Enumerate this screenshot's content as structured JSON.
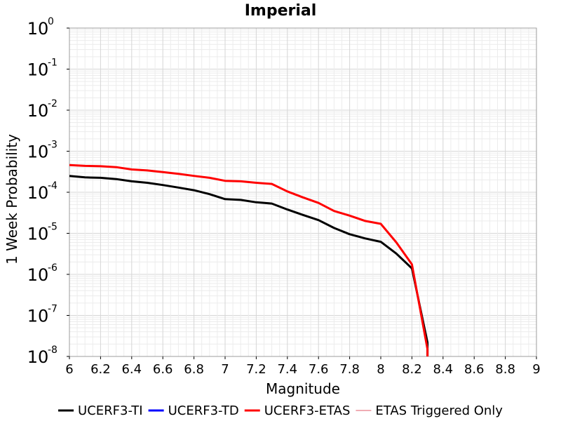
{
  "chart_data": {
    "type": "line",
    "title": "Imperial",
    "xlabel": "Magnitude",
    "ylabel": "1 Week Probability",
    "xlim": [
      6,
      9
    ],
    "ylim": [
      1e-08,
      1
    ],
    "yscale": "log",
    "grid": true,
    "legend_position": "bottom",
    "x_ticks": [
      "6",
      "6.2",
      "6.4",
      "6.6",
      "6.8",
      "7",
      "7.2",
      "7.4",
      "7.6",
      "7.8",
      "8",
      "8.2",
      "8.4",
      "8.6",
      "8.8",
      "9"
    ],
    "y_ticks": [
      {
        "base": "10",
        "exp": "0"
      },
      {
        "base": "10",
        "exp": "-1"
      },
      {
        "base": "10",
        "exp": "-2"
      },
      {
        "base": "10",
        "exp": "-3"
      },
      {
        "base": "10",
        "exp": "-4"
      },
      {
        "base": "10",
        "exp": "-5"
      },
      {
        "base": "10",
        "exp": "-6"
      },
      {
        "base": "10",
        "exp": "-7"
      },
      {
        "base": "10",
        "exp": "-8"
      }
    ],
    "series": [
      {
        "name": "UCERF3-TI",
        "color": "#000000",
        "width": 3,
        "x": [
          6.0,
          6.1,
          6.2,
          6.3,
          6.4,
          6.5,
          6.6,
          6.7,
          6.8,
          6.9,
          7.0,
          7.1,
          7.2,
          7.3,
          7.4,
          7.5,
          7.6,
          7.7,
          7.8,
          7.9,
          8.0,
          8.1,
          8.2,
          8.3,
          8.3
        ],
        "y": [
          0.00025,
          0.00023,
          0.000225,
          0.00021,
          0.000185,
          0.00017,
          0.00015,
          0.00013,
          0.000112,
          9e-05,
          6.8e-05,
          6.5e-05,
          5.7e-05,
          5.3e-05,
          3.8e-05,
          2.8e-05,
          2.1e-05,
          1.35e-05,
          9.5e-06,
          7.5e-06,
          6.2e-06,
          3.2e-06,
          1.4e-06,
          2.2e-08,
          1e-08
        ]
      },
      {
        "name": "UCERF3-TD",
        "color": "#0000ff",
        "width": 3,
        "x": [],
        "y": []
      },
      {
        "name": "UCERF3-ETAS",
        "color": "#ff0000",
        "width": 3,
        "x": [
          6.0,
          6.1,
          6.2,
          6.3,
          6.4,
          6.5,
          6.6,
          6.7,
          6.8,
          6.9,
          7.0,
          7.1,
          7.2,
          7.3,
          7.4,
          7.5,
          7.6,
          7.7,
          7.8,
          7.9,
          8.0,
          8.1,
          8.2,
          8.3,
          8.3
        ],
        "y": [
          0.00046,
          0.00044,
          0.00043,
          0.00041,
          0.00036,
          0.00034,
          0.00031,
          0.00028,
          0.00025,
          0.000225,
          0.00019,
          0.000185,
          0.00017,
          0.00016,
          0.000105,
          7.5e-05,
          5.5e-05,
          3.5e-05,
          2.7e-05,
          2e-05,
          1.7e-05,
          6e-06,
          1.75e-06,
          1.5e-08,
          1e-08
        ]
      },
      {
        "name": "ETAS Triggered Only",
        "color": "#e05a6a",
        "width": 1,
        "x": [],
        "y": []
      }
    ]
  }
}
